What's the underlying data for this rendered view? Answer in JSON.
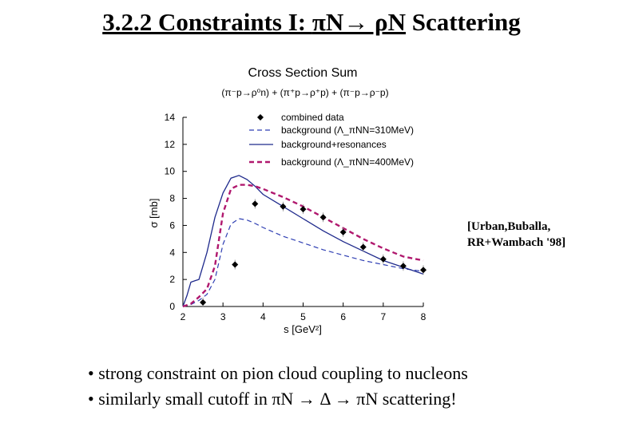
{
  "slide": {
    "title_prefix": "3.2.2 Constraints I: ",
    "title_reaction_a": "πN→ ρN",
    "title_suffix": " Scattering"
  },
  "reference": {
    "line1": "[Urban,Buballa,",
    "line2": "RR+Wambach '98]"
  },
  "bullets": [
    "• strong constraint on pion cloud coupling to nucleons",
    "• similarly small cutoff  in πN → Δ → πN scattering!"
  ],
  "colors": {
    "axis_text": "#000000",
    "title_blue": "#3a46c8",
    "subtitle_purple": "#7a3fb0",
    "background_dashed": "#2f3fb3",
    "resonances_solid": "#1f2a8c",
    "background_400": "#b0186e",
    "points": "#000000"
  },
  "chart_data": {
    "type": "line",
    "title": "Cross Section Sum",
    "subtitle": "(π⁻p→ρ⁰n) + (π⁺p→ρ⁺p) + (π⁻p→ρ⁻p)",
    "xlabel": "s [GeV²]",
    "ylabel": "σ [mb]",
    "xlim": [
      2,
      8
    ],
    "ylim": [
      0,
      14
    ],
    "x_ticks": [
      "2",
      "3",
      "4",
      "5",
      "6",
      "7",
      "8"
    ],
    "y_ticks": [
      "0",
      "2",
      "4",
      "6",
      "8",
      "10",
      "12",
      "14"
    ],
    "legend_position": "top-right",
    "legend": [
      {
        "label": "combined data"
      },
      {
        "label": "background (Λ_πNN=310MeV)"
      },
      {
        "label": "background+resonances"
      },
      {
        "label": "background (Λ_πNN=400MeV)"
      }
    ],
    "points": {
      "name": "combined data",
      "x": [
        2.5,
        3.3,
        3.8,
        4.5,
        5.0,
        5.5,
        6.0,
        6.5,
        7.0,
        7.5,
        8.0
      ],
      "y": [
        0.3,
        3.1,
        7.6,
        7.4,
        7.2,
        6.6,
        5.5,
        4.4,
        3.5,
        3.0,
        2.7
      ]
    },
    "series": [
      {
        "name": "background (Λ_πNN=310MeV)",
        "style": "dashed",
        "x": [
          2.0,
          2.2,
          2.4,
          2.6,
          2.8,
          3.0,
          3.2,
          3.4,
          3.6,
          3.8,
          4.0,
          4.5,
          5.0,
          5.5,
          6.0,
          6.5,
          7.0,
          7.5,
          8.0
        ],
        "y": [
          0.0,
          0.15,
          0.45,
          0.9,
          2.0,
          4.6,
          6.1,
          6.5,
          6.4,
          6.15,
          5.85,
          5.2,
          4.7,
          4.2,
          3.8,
          3.4,
          3.1,
          2.8,
          2.6
        ]
      },
      {
        "name": "background+resonances",
        "style": "solid",
        "x": [
          2.0,
          2.1,
          2.2,
          2.3,
          2.4,
          2.6,
          2.8,
          3.0,
          3.2,
          3.4,
          3.6,
          3.8,
          4.0,
          4.5,
          5.0,
          5.5,
          6.0,
          6.5,
          7.0,
          7.5,
          8.0
        ],
        "y": [
          0.0,
          0.8,
          1.8,
          1.9,
          2.0,
          4.0,
          6.6,
          8.4,
          9.5,
          9.7,
          9.4,
          8.9,
          8.3,
          7.4,
          6.5,
          5.6,
          4.8,
          4.1,
          3.4,
          2.9,
          2.4
        ]
      },
      {
        "name": "background (Λ_πNN=400MeV)",
        "style": "dashed",
        "x": [
          2.0,
          2.2,
          2.4,
          2.6,
          2.8,
          3.0,
          3.2,
          3.4,
          3.6,
          3.8,
          4.0,
          4.5,
          5.0,
          5.5,
          6.0,
          6.5,
          7.0,
          7.5,
          8.0
        ],
        "y": [
          0.0,
          0.2,
          0.7,
          1.3,
          3.0,
          6.9,
          8.7,
          9.0,
          9.0,
          8.9,
          8.7,
          8.1,
          7.4,
          6.6,
          5.8,
          5.0,
          4.3,
          3.7,
          3.4
        ]
      }
    ]
  }
}
